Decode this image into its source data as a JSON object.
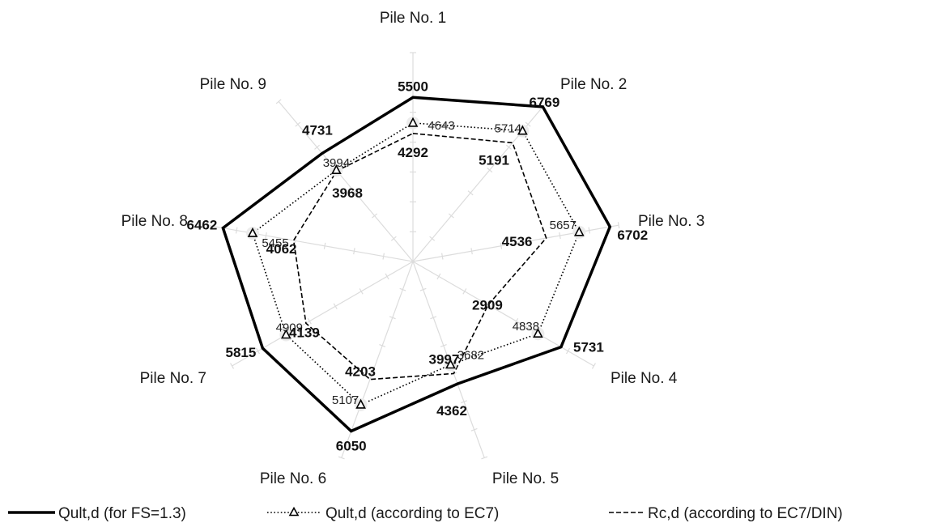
{
  "chart_data": {
    "type": "radar",
    "categories": [
      "Pile No. 1",
      "Pile No. 2",
      "Pile No. 3",
      "Pile No. 4",
      "Pile No. 5",
      "Pile No. 6",
      "Pile No. 7",
      "Pile No. 8",
      "Pile No. 9"
    ],
    "rmax": 7000,
    "grid": true,
    "legend_position": "bottom",
    "series": [
      {
        "name": "Qult,d (for FS=1.3)",
        "style": "solid",
        "marker": "none",
        "color": "#000000",
        "values": [
          5500,
          6769,
          6702,
          5731,
          4362,
          6050,
          5815,
          6462,
          4731
        ]
      },
      {
        "name": "Qult,d (according to EC7)",
        "style": "dotted",
        "marker": "triangle",
        "color": "#000000",
        "values": [
          4643,
          5714,
          5657,
          4838,
          3682,
          5107,
          4909,
          5455,
          3994
        ]
      },
      {
        "name": "Rc,d  (according to EC7/DIN)",
        "style": "dashed",
        "marker": "none",
        "color": "#000000",
        "values": [
          4292,
          5191,
          4536,
          2909,
          3997,
          4203,
          4139,
          4062,
          3968
        ]
      }
    ]
  }
}
